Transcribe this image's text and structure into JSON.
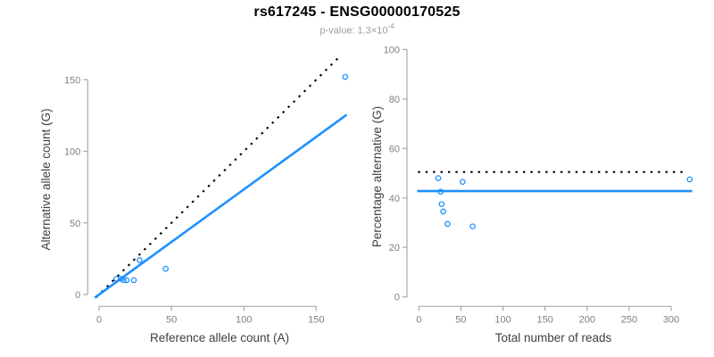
{
  "header": {
    "title": "rs617245 - ENSG00000170525",
    "pvalue_text": "p-value: 1.3×10",
    "pvalue_exponent": "-4"
  },
  "colors": {
    "accent_blue": "#1E90FF",
    "line_black": "#000000",
    "axis_line": "#a9a9a9",
    "tick_label": "#7f7f7f",
    "axis_title": "#404040",
    "subtitle_gray": "#9b9b9b",
    "background": "#ffffff"
  },
  "chart_data": [
    {
      "type": "scatter",
      "name": "allele-counts-plot",
      "xlabel": "Reference allele count (A)",
      "ylabel": "Alternative allele count (G)",
      "xlim": [
        0,
        150
      ],
      "ylim": [
        0,
        150
      ],
      "xticks": [
        0,
        50,
        100,
        150
      ],
      "yticks": [
        0,
        50,
        100,
        150
      ],
      "grid": false,
      "marker": "open-circle",
      "marker_color": "#1E90FF",
      "points": [
        [
          12,
          11
        ],
        [
          15,
          11
        ],
        [
          17,
          10
        ],
        [
          19,
          10
        ],
        [
          24,
          10
        ],
        [
          28,
          24
        ],
        [
          46,
          18
        ],
        [
          170,
          152
        ]
      ],
      "lines": [
        {
          "name": "identity-line",
          "style": "dotted",
          "color": "#000000",
          "from": [
            -2,
            -2
          ],
          "to": [
            166,
            166
          ]
        },
        {
          "name": "fit-line",
          "style": "solid",
          "color": "#1E90FF",
          "from": [
            -3,
            -2.2
          ],
          "to": [
            171,
            125.5
          ]
        }
      ]
    },
    {
      "type": "scatter",
      "name": "percentage-alternative-plot",
      "xlabel": "Total number of reads",
      "ylabel": "Percentage alternative (G)",
      "xlim": [
        0,
        300
      ],
      "ylim": [
        0,
        100
      ],
      "xticks": [
        0,
        50,
        100,
        150,
        200,
        250,
        300
      ],
      "yticks": [
        0,
        20,
        40,
        60,
        80,
        100
      ],
      "grid": false,
      "marker": "open-circle",
      "marker_color": "#1E90FF",
      "points": [
        [
          23,
          48
        ],
        [
          26,
          42.5
        ],
        [
          27,
          37.5
        ],
        [
          29,
          34.5
        ],
        [
          34,
          29.5
        ],
        [
          52,
          46.5
        ],
        [
          64,
          28.5
        ],
        [
          322,
          47.5
        ]
      ],
      "lines": [
        {
          "name": "fifty-percent-line",
          "style": "dotted",
          "color": "#000000",
          "from": [
            -1,
            50.5
          ],
          "to": [
            318,
            50.5
          ]
        },
        {
          "name": "mean-percentage-line",
          "style": "solid",
          "color": "#1E90FF",
          "from": [
            -2,
            42.8
          ],
          "to": [
            325,
            42.8
          ]
        }
      ]
    }
  ]
}
